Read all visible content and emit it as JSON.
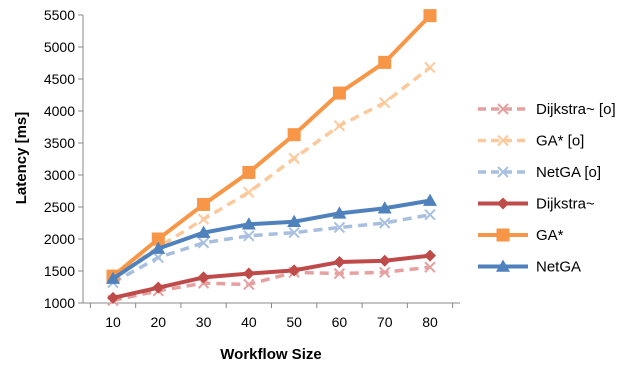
{
  "chart_data": {
    "type": "line",
    "title": "",
    "xlabel": "Workflow Size",
    "ylabel": "Latency [ms]",
    "categories": [
      "10",
      "20",
      "30",
      "40",
      "50",
      "60",
      "70",
      "80"
    ],
    "x": [
      10,
      20,
      30,
      40,
      50,
      60,
      70,
      80
    ],
    "ylim": [
      1000,
      5500
    ],
    "yticks": [
      "1000",
      "1500",
      "2000",
      "2500",
      "3000",
      "3500",
      "4000",
      "4500",
      "5000",
      "5500"
    ],
    "grid": false,
    "legend_position": "right",
    "series": [
      {
        "name": "Dijkstra~ [o]",
        "color": "#e6a09f",
        "dashed": true,
        "marker": "x-icon",
        "values": [
          1040,
          1190,
          1310,
          1290,
          1480,
          1460,
          1480,
          1560
        ]
      },
      {
        "name": "GA* [o]",
        "color": "#fbc99b",
        "dashed": true,
        "marker": "x-icon",
        "values": [
          1410,
          1870,
          2310,
          2730,
          3260,
          3770,
          4130,
          4680
        ]
      },
      {
        "name": "NetGA [o]",
        "color": "#a8bfe0",
        "dashed": true,
        "marker": "x-icon",
        "values": [
          1320,
          1710,
          1940,
          2050,
          2100,
          2180,
          2250,
          2380
        ]
      },
      {
        "name": "Dijkstra~",
        "color": "#bf4a4a",
        "dashed": false,
        "marker": "diamond-icon",
        "values": [
          1080,
          1240,
          1400,
          1460,
          1510,
          1640,
          1660,
          1740
        ]
      },
      {
        "name": "GA*",
        "color": "#f79646",
        "dashed": false,
        "marker": "square-icon",
        "values": [
          1420,
          2000,
          2540,
          3040,
          3630,
          4280,
          4760,
          5490
        ]
      },
      {
        "name": "NetGA",
        "color": "#4f81bd",
        "dashed": false,
        "marker": "triangle-icon",
        "values": [
          1380,
          1850,
          2100,
          2230,
          2270,
          2400,
          2480,
          2600
        ]
      }
    ]
  }
}
